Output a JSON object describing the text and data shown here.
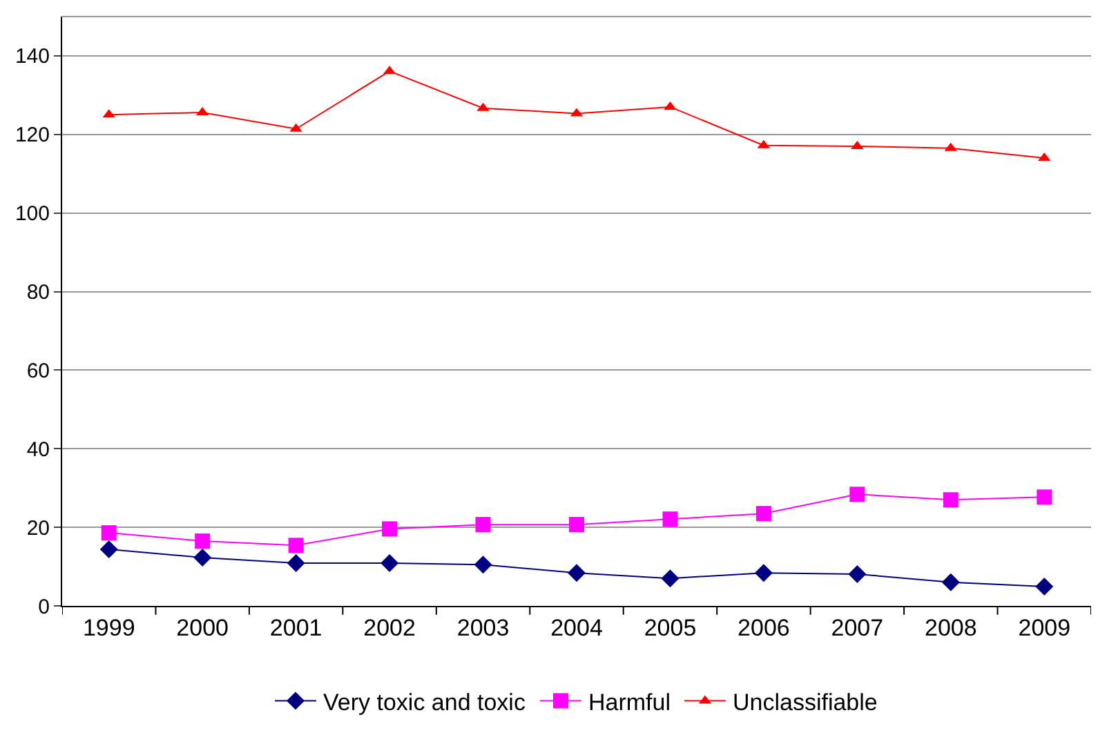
{
  "chart_data": {
    "type": "line",
    "categories": [
      "1999",
      "2000",
      "2001",
      "2002",
      "2003",
      "2004",
      "2005",
      "2006",
      "2007",
      "2008",
      "2009"
    ],
    "series": [
      {
        "name": "Very toxic and toxic",
        "color": "#000080",
        "marker": "diamond",
        "values": [
          14.4,
          12.3,
          10.9,
          10.9,
          10.5,
          8.4,
          7,
          8.4,
          8.1,
          6,
          4.9
        ]
      },
      {
        "name": "Harmful",
        "color": "#ff00ff",
        "marker": "square",
        "values": [
          18.6,
          16.5,
          15.4,
          19.6,
          20.7,
          20.7,
          22.1,
          23.5,
          28.4,
          27,
          27.7
        ]
      },
      {
        "name": "Unclassifiable",
        "color": "#ff0000",
        "marker": "triangle",
        "values": [
          125,
          125.6,
          121.4,
          136.1,
          126.7,
          125.3,
          127,
          117.2,
          117,
          116.5,
          114
        ]
      }
    ],
    "ylim": [
      0,
      150
    ],
    "yticks": [
      0,
      20,
      40,
      60,
      80,
      100,
      120,
      140
    ],
    "grid": "y",
    "legend": "bottom",
    "line_style": "solid"
  }
}
